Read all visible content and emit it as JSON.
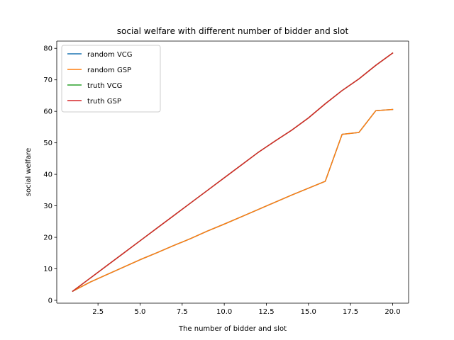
{
  "chart_data": {
    "type": "line",
    "title": "social welfare with different number of bidder and slot",
    "xlabel": "The number of bidder and slot",
    "ylabel": "social welfare",
    "xlim": [
      0.05,
      20.95
    ],
    "ylim": [
      -0.9,
      82.3
    ],
    "xticks": [
      2.5,
      5.0,
      7.5,
      10.0,
      12.5,
      15.0,
      17.5,
      20.0
    ],
    "xtick_labels": [
      "2.5",
      "5.0",
      "7.5",
      "10.0",
      "12.5",
      "15.0",
      "17.5",
      "20.0"
    ],
    "yticks": [
      0,
      10,
      20,
      30,
      40,
      50,
      60,
      70,
      80
    ],
    "ytick_labels": [
      "0",
      "10",
      "20",
      "30",
      "40",
      "50",
      "60",
      "70",
      "80"
    ],
    "grid": false,
    "legend_position": "top-left",
    "x": [
      1,
      2,
      3,
      4,
      5,
      6,
      7,
      8,
      9,
      10,
      11,
      12,
      13,
      14,
      15,
      16,
      17,
      18,
      19,
      20
    ],
    "series": [
      {
        "name": "random VCG",
        "color": "#1f77b4",
        "values": [
          2.9,
          5.7,
          8.1,
          10.5,
          12.9,
          15.1,
          17.4,
          19.6,
          22.0,
          24.2,
          26.5,
          28.8,
          31.1,
          33.4,
          35.6,
          37.8,
          52.7,
          53.3,
          60.2,
          60.6
        ]
      },
      {
        "name": "random GSP",
        "color": "#ff7f0e",
        "values": [
          2.9,
          5.7,
          8.1,
          10.5,
          12.9,
          15.1,
          17.4,
          19.6,
          22.0,
          24.2,
          26.5,
          28.8,
          31.1,
          33.4,
          35.6,
          37.8,
          52.7,
          53.3,
          60.2,
          60.6
        ]
      },
      {
        "name": "truth VCG",
        "color": "#2ca02c",
        "values": [
          2.9,
          6.9,
          10.9,
          14.9,
          18.9,
          22.9,
          26.9,
          30.9,
          34.9,
          38.9,
          42.9,
          46.9,
          50.5,
          54.0,
          57.9,
          62.4,
          66.6,
          70.3,
          74.6,
          78.5
        ]
      },
      {
        "name": "truth GSP",
        "color": "#d62728",
        "values": [
          2.9,
          6.9,
          10.9,
          14.9,
          18.9,
          22.9,
          26.9,
          30.9,
          34.9,
          38.9,
          42.9,
          46.9,
          50.5,
          54.0,
          57.9,
          62.4,
          66.6,
          70.3,
          74.6,
          78.5
        ]
      }
    ]
  }
}
